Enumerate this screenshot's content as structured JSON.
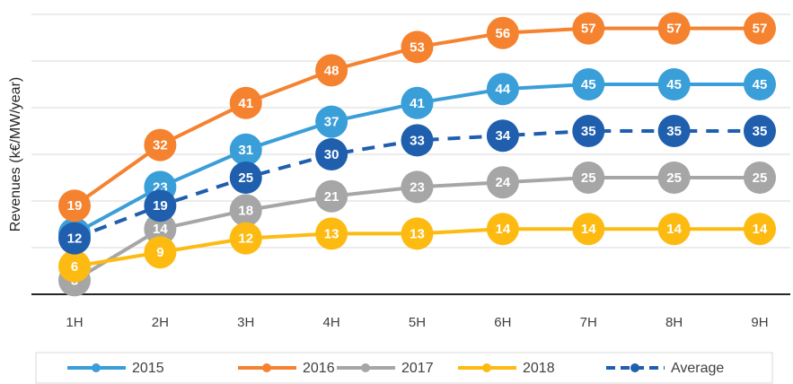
{
  "chart_data": {
    "type": "line",
    "y_label": "Revenues (k€/MW/year)",
    "categories": [
      "1H",
      "2H",
      "3H",
      "4H",
      "5H",
      "6H",
      "7H",
      "8H",
      "9H"
    ],
    "series": [
      {
        "name": "2015",
        "color": "#3a9fd9",
        "values": [
          13,
          23,
          31,
          37,
          41,
          44,
          45,
          45,
          45
        ]
      },
      {
        "name": "2016",
        "color": "#f5822f",
        "values": [
          19,
          32,
          41,
          48,
          53,
          56,
          57,
          57,
          57
        ]
      },
      {
        "name": "2017",
        "color": "#a6a6a6",
        "values": [
          3,
          14,
          18,
          21,
          23,
          24,
          25,
          25,
          25
        ]
      },
      {
        "name": "2018",
        "color": "#fdbb12",
        "values": [
          6,
          9,
          12,
          13,
          13,
          14,
          14,
          14,
          14
        ]
      },
      {
        "name": "Average",
        "color": "#1f5fae",
        "dashed": true,
        "values": [
          12,
          19,
          25,
          30,
          33,
          34,
          35,
          35,
          35
        ]
      }
    ],
    "ylim": [
      0,
      60
    ],
    "yticks": [
      0,
      10,
      20,
      30,
      40,
      50,
      60
    ],
    "grid": true
  }
}
